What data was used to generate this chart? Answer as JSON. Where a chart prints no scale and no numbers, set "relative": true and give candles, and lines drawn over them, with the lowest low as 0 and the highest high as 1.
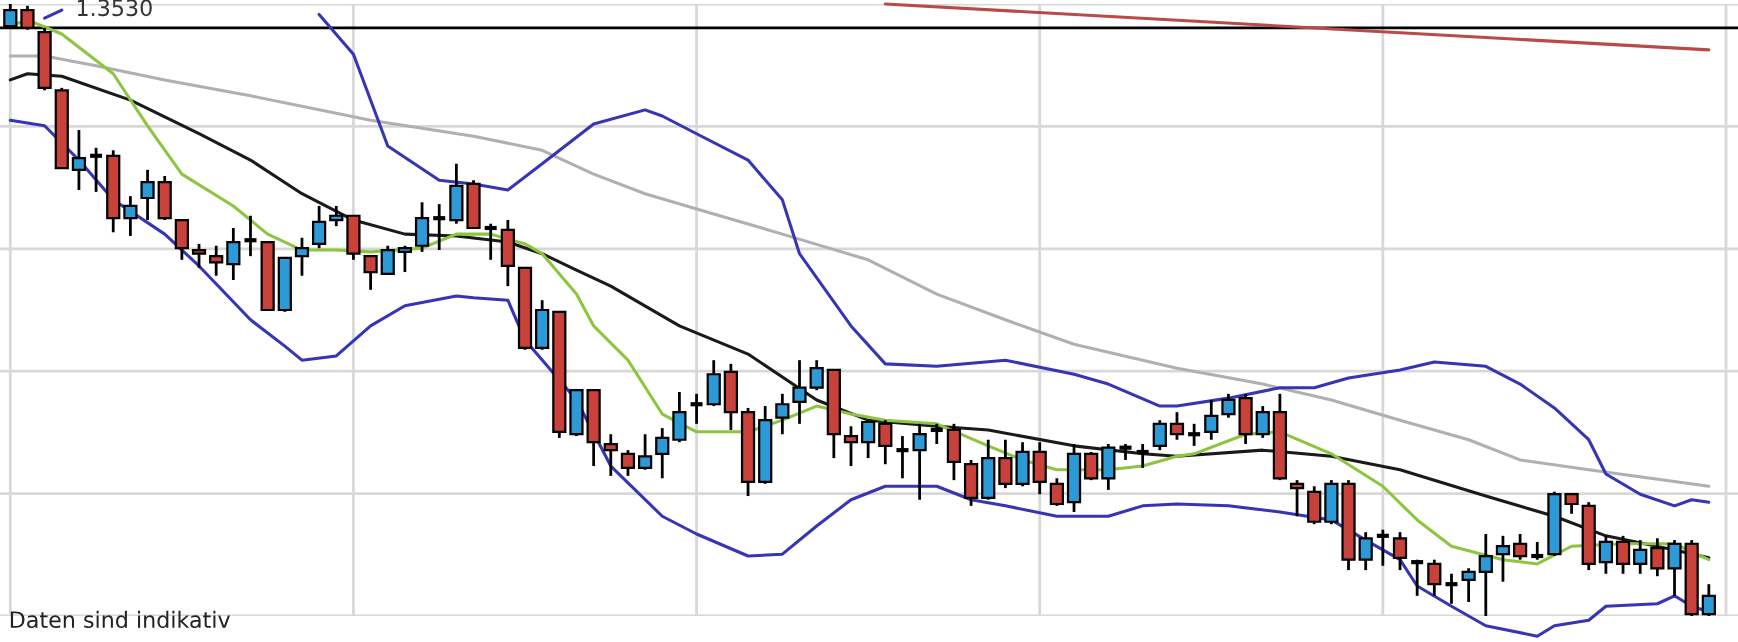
{
  "chart_data": {
    "type": "candlestick",
    "relative": true,
    "grid": true,
    "categories": [
      null,
      null,
      null,
      null,
      null,
      null,
      null,
      null,
      null,
      null,
      null,
      null,
      null,
      null,
      null,
      null,
      null,
      null,
      null,
      null,
      null,
      null,
      null,
      null,
      null,
      null,
      null,
      null,
      null,
      null,
      null,
      null,
      null,
      null,
      null,
      null,
      null,
      null,
      null,
      null,
      null,
      null,
      null,
      null,
      null,
      null,
      null,
      null,
      null,
      null,
      null,
      null,
      null,
      null,
      null,
      null,
      null,
      null,
      null,
      null,
      null,
      null,
      null,
      null,
      null,
      null,
      null,
      null,
      null,
      null,
      null,
      null,
      null,
      null,
      null,
      null,
      null,
      null,
      null,
      null,
      null,
      null,
      null,
      null,
      null,
      null,
      null,
      null,
      null,
      null,
      null,
      null,
      null,
      null,
      null,
      null,
      null,
      null,
      null,
      null
    ],
    "ohlc": [
      [
        0.964,
        1.0,
        0.961,
        0.99
      ],
      [
        0.99,
        0.997,
        0.958,
        0.961
      ],
      [
        0.954,
        0.961,
        0.859,
        0.863
      ],
      [
        0.859,
        0.863,
        0.732,
        0.732
      ],
      [
        0.729,
        0.794,
        0.696,
        0.748
      ],
      [
        0.752,
        0.765,
        0.693,
        0.752
      ],
      [
        0.752,
        0.761,
        0.627,
        0.65
      ],
      [
        0.65,
        0.686,
        0.621,
        0.67
      ],
      [
        0.683,
        0.729,
        0.647,
        0.709
      ],
      [
        0.709,
        0.719,
        0.647,
        0.65
      ],
      [
        0.647,
        0.647,
        0.582,
        0.601
      ],
      [
        0.598,
        0.608,
        0.569,
        0.592
      ],
      [
        0.588,
        0.605,
        0.556,
        0.578
      ],
      [
        0.575,
        0.634,
        0.549,
        0.611
      ],
      [
        0.614,
        0.654,
        0.588,
        0.614
      ],
      [
        0.611,
        0.611,
        0.5,
        0.5
      ],
      [
        0.5,
        0.585,
        0.497,
        0.585
      ],
      [
        0.588,
        0.618,
        0.556,
        0.601
      ],
      [
        0.608,
        0.67,
        0.601,
        0.644
      ],
      [
        0.647,
        0.67,
        0.637,
        0.654
      ],
      [
        0.654,
        0.654,
        0.582,
        0.592
      ],
      [
        0.588,
        0.588,
        0.533,
        0.562
      ],
      [
        0.559,
        0.605,
        0.559,
        0.598
      ],
      [
        0.595,
        0.605,
        0.562,
        0.601
      ],
      [
        0.605,
        0.676,
        0.595,
        0.65
      ],
      [
        0.65,
        0.673,
        0.598,
        0.65
      ],
      [
        0.647,
        0.739,
        0.641,
        0.703
      ],
      [
        0.706,
        0.712,
        0.634,
        0.634
      ],
      [
        0.634,
        0.641,
        0.582,
        0.634
      ],
      [
        0.631,
        0.647,
        0.539,
        0.572
      ],
      [
        0.569,
        0.569,
        0.435,
        0.438
      ],
      [
        0.438,
        0.516,
        0.435,
        0.5
      ],
      [
        0.497,
        0.497,
        0.291,
        0.301
      ],
      [
        0.297,
        0.369,
        0.294,
        0.369
      ],
      [
        0.369,
        0.369,
        0.245,
        0.284
      ],
      [
        0.281,
        0.297,
        0.229,
        0.271
      ],
      [
        0.265,
        0.271,
        0.229,
        0.242
      ],
      [
        0.242,
        0.297,
        0.239,
        0.261
      ],
      [
        0.265,
        0.307,
        0.225,
        0.291
      ],
      [
        0.288,
        0.366,
        0.284,
        0.333
      ],
      [
        0.346,
        0.363,
        0.314,
        0.346
      ],
      [
        0.346,
        0.418,
        0.343,
        0.395
      ],
      [
        0.399,
        0.412,
        0.304,
        0.333
      ],
      [
        0.333,
        0.34,
        0.196,
        0.219
      ],
      [
        0.219,
        0.343,
        0.216,
        0.32
      ],
      [
        0.324,
        0.363,
        0.297,
        0.346
      ],
      [
        0.35,
        0.418,
        0.314,
        0.373
      ],
      [
        0.373,
        0.418,
        0.369,
        0.405
      ],
      [
        0.402,
        0.402,
        0.258,
        0.297
      ],
      [
        0.294,
        0.31,
        0.245,
        0.284
      ],
      [
        0.284,
        0.32,
        0.258,
        0.317
      ],
      [
        0.314,
        0.32,
        0.248,
        0.278
      ],
      [
        0.271,
        0.294,
        0.225,
        0.271
      ],
      [
        0.271,
        0.314,
        0.19,
        0.297
      ],
      [
        0.304,
        0.314,
        0.281,
        0.304
      ],
      [
        0.304,
        0.314,
        0.222,
        0.252
      ],
      [
        0.248,
        0.255,
        0.18,
        0.193
      ],
      [
        0.193,
        0.288,
        0.19,
        0.258
      ],
      [
        0.258,
        0.288,
        0.209,
        0.216
      ],
      [
        0.216,
        0.284,
        0.212,
        0.268
      ],
      [
        0.268,
        0.284,
        0.199,
        0.219
      ],
      [
        0.216,
        0.225,
        0.18,
        0.183
      ],
      [
        0.186,
        0.281,
        0.17,
        0.265
      ],
      [
        0.265,
        0.268,
        0.222,
        0.225
      ],
      [
        0.225,
        0.281,
        0.206,
        0.275
      ],
      [
        0.275,
        0.281,
        0.255,
        0.275
      ],
      [
        0.268,
        0.281,
        0.242,
        0.268
      ],
      [
        0.278,
        0.32,
        0.271,
        0.314
      ],
      [
        0.314,
        0.333,
        0.288,
        0.297
      ],
      [
        0.297,
        0.314,
        0.278,
        0.297
      ],
      [
        0.301,
        0.353,
        0.288,
        0.327
      ],
      [
        0.33,
        0.363,
        0.324,
        0.353
      ],
      [
        0.356,
        0.363,
        0.281,
        0.297
      ],
      [
        0.297,
        0.343,
        0.291,
        0.333
      ],
      [
        0.333,
        0.363,
        0.222,
        0.225
      ],
      [
        0.216,
        0.222,
        0.163,
        0.209
      ],
      [
        0.203,
        0.212,
        0.15,
        0.154
      ],
      [
        0.154,
        0.222,
        0.15,
        0.216
      ],
      [
        0.216,
        0.222,
        0.075,
        0.092
      ],
      [
        0.092,
        0.137,
        0.075,
        0.127
      ],
      [
        0.131,
        0.141,
        0.082,
        0.131
      ],
      [
        0.127,
        0.137,
        0.075,
        0.095
      ],
      [
        0.088,
        0.092,
        0.033,
        0.088
      ],
      [
        0.085,
        0.092,
        0.033,
        0.052
      ],
      [
        0.052,
        0.069,
        0.02,
        0.052
      ],
      [
        0.059,
        0.078,
        0.023,
        0.072
      ],
      [
        0.072,
        0.134,
        0.0,
        0.098
      ],
      [
        0.101,
        0.131,
        0.056,
        0.114
      ],
      [
        0.118,
        0.134,
        0.092,
        0.098
      ],
      [
        0.098,
        0.121,
        0.092,
        0.098
      ],
      [
        0.101,
        0.203,
        0.098,
        0.199
      ],
      [
        0.199,
        0.199,
        0.167,
        0.183
      ],
      [
        0.18,
        0.186,
        0.075,
        0.085
      ],
      [
        0.088,
        0.131,
        0.069,
        0.121
      ],
      [
        0.121,
        0.131,
        0.069,
        0.085
      ],
      [
        0.085,
        0.124,
        0.069,
        0.108
      ],
      [
        0.111,
        0.127,
        0.065,
        0.078
      ],
      [
        0.078,
        0.124,
        0.033,
        0.118
      ],
      [
        0.118,
        0.124,
        0.0,
        0.003
      ],
      [
        0.003,
        0.052,
        0.0,
        0.033
      ]
    ],
    "colors": [
      "#2b9ad6",
      "#c9413b",
      "#c9413b",
      "#c9413b",
      "#2b9ad6",
      "#000000",
      "#c9413b",
      "#2b9ad6",
      "#2b9ad6",
      "#c9413b",
      "#c9413b",
      "#c9413b",
      "#c9413b",
      "#2b9ad6",
      "#000000",
      "#c9413b",
      "#2b9ad6",
      "#2b9ad6",
      "#2b9ad6",
      "#2b9ad6",
      "#c9413b",
      "#c9413b",
      "#2b9ad6",
      "#2b9ad6",
      "#2b9ad6",
      "#000000",
      "#2b9ad6",
      "#c9413b",
      "#000000",
      "#c9413b",
      "#c9413b",
      "#2b9ad6",
      "#c9413b",
      "#2b9ad6",
      "#c9413b",
      "#c9413b",
      "#c9413b",
      "#2b9ad6",
      "#2b9ad6",
      "#2b9ad6",
      "#000000",
      "#2b9ad6",
      "#c9413b",
      "#c9413b",
      "#2b9ad6",
      "#2b9ad6",
      "#2b9ad6",
      "#2b9ad6",
      "#c9413b",
      "#c9413b",
      "#2b9ad6",
      "#c9413b",
      "#000000",
      "#2b9ad6",
      "#000000",
      "#c9413b",
      "#c9413b",
      "#2b9ad6",
      "#c9413b",
      "#2b9ad6",
      "#c9413b",
      "#c9413b",
      "#2b9ad6",
      "#c9413b",
      "#2b9ad6",
      "#000000",
      "#000000",
      "#2b9ad6",
      "#c9413b",
      "#000000",
      "#2b9ad6",
      "#2b9ad6",
      "#c9413b",
      "#2b9ad6",
      "#c9413b",
      "#c9413b",
      "#c9413b",
      "#2b9ad6",
      "#c9413b",
      "#2b9ad6",
      "#000000",
      "#c9413b",
      "#000000",
      "#c9413b",
      "#000000",
      "#2b9ad6",
      "#2b9ad6",
      "#2b9ad6",
      "#c9413b",
      "#000000",
      "#2b9ad6",
      "#c9413b",
      "#c9413b",
      "#2b9ad6",
      "#c9413b",
      "#2b9ad6",
      "#c9413b",
      "#2b9ad6",
      "#c9413b",
      "#2b9ad6"
    ],
    "series": [
      {
        "type": "line",
        "color": "#b0b0b0",
        "values": [
          0.915,
          null,
          0.915,
          null,
          null,
          0.899,
          null,
          null,
          null,
          0.876,
          null,
          null,
          null,
          null,
          0.85,
          null,
          null,
          null,
          null,
          null,
          null,
          0.81,
          null,
          null,
          null,
          null,
          null,
          0.784,
          null,
          null,
          null,
          0.761,
          null,
          null,
          0.722,
          null,
          null,
          0.69,
          null,
          null,
          null,
          0.657,
          null,
          null,
          null,
          0.624,
          null,
          null,
          null,
          null,
          0.582,
          null,
          null,
          null,
          0.526,
          null,
          null,
          null,
          0.484,
          null,
          null,
          null,
          0.444,
          null,
          null,
          null,
          null,
          null,
          0.405,
          null,
          null,
          null,
          null,
          0.379,
          null,
          null,
          null,
          0.353,
          null,
          null,
          null,
          0.32,
          null,
          null,
          null,
          0.288,
          null,
          null,
          0.255,
          null,
          null,
          null,
          0.239,
          null,
          null,
          null,
          null,
          null,
          null,
          0.212
        ]
      },
      {
        "type": "line",
        "color": "#3535b5",
        "values": [
          null,
          null,
          0.977,
          0.99,
          null,
          null,
          null,
          null,
          null,
          null,
          null,
          null,
          null,
          null,
          null,
          null,
          null,
          null,
          null,
          null,
          null,
          null,
          null,
          null,
          null,
          null,
          null,
          null,
          null,
          null,
          null,
          null,
          null,
          null,
          null,
          null,
          null,
          null,
          null,
          null,
          null,
          null,
          null,
          null,
          null,
          null,
          null,
          null,
          null,
          null,
          null,
          null,
          null,
          null,
          null,
          null,
          null,
          null,
          null,
          null,
          null,
          null,
          null,
          null,
          null,
          null,
          null,
          null,
          null,
          null,
          null,
          null,
          null,
          null,
          null,
          null,
          null,
          null,
          null,
          null,
          null,
          null,
          null,
          null,
          null,
          null,
          null,
          null,
          null,
          null,
          null,
          null,
          null,
          null,
          null,
          null,
          null,
          null,
          null,
          null
        ]
      },
      {
        "type": "line",
        "color": "#3535b5",
        "values": [
          null,
          null,
          null,
          null,
          null,
          null,
          null,
          null,
          null,
          null,
          null,
          null,
          null,
          null,
          null,
          null,
          null,
          null,
          0.983,
          null,
          0.918,
          null,
          0.768,
          null,
          null,
          0.712,
          null,
          0.706,
          null,
          0.696,
          null,
          0.739,
          null,
          null,
          0.804,
          null,
          null,
          0.827,
          0.817,
          null,
          0.788,
          null,
          null,
          0.745,
          null,
          0.68,
          0.592,
          null,
          null,
          0.474,
          null,
          0.412,
          null,
          null,
          0.408,
          null,
          null,
          null,
          0.418,
          null,
          null,
          null,
          0.395,
          null,
          0.379,
          null,
          null,
          0.343,
          0.343,
          null,
          null,
          0.356,
          null,
          null,
          0.373,
          null,
          0.373,
          null,
          0.389,
          null,
          null,
          0.402,
          null,
          0.415,
          null,
          null,
          0.408,
          null,
          0.379,
          null,
          0.34,
          null,
          0.288,
          0.232,
          null,
          0.199,
          null,
          0.18,
          0.19,
          0.186
        ]
      },
      {
        "type": "line",
        "color": "#3535b5",
        "values": [
          0.81,
          null,
          0.801,
          null,
          0.745,
          null,
          0.68,
          null,
          null,
          0.624,
          null,
          0.572,
          null,
          null,
          0.484,
          null,
          0.441,
          0.418,
          null,
          0.425,
          null,
          0.474,
          null,
          0.507,
          null,
          null,
          0.523,
          0.52,
          null,
          0.516,
          0.451,
          null,
          null,
          0.353,
          null,
          0.245,
          null,
          null,
          0.163,
          null,
          0.134,
          null,
          null,
          0.098,
          null,
          0.101,
          null,
          0.147,
          null,
          0.19,
          null,
          0.212,
          null,
          null,
          0.212,
          null,
          0.19,
          null,
          0.18,
          null,
          null,
          0.163,
          null,
          null,
          0.163,
          null,
          0.18,
          null,
          0.183,
          null,
          null,
          0.18,
          null,
          null,
          0.17,
          null,
          null,
          0.157,
          null,
          0.124,
          null,
          0.092,
          0.049,
          null,
          0.016,
          null,
          -0.016,
          null,
          null,
          -0.033,
          -0.016,
          null,
          -0.007,
          0.016,
          null,
          null,
          0.02,
          0.033,
          0.016,
          0.007
        ]
      },
      {
        "type": "line",
        "color": "#1a1a1a",
        "values": [
          0.876,
          0.886,
          null,
          0.882,
          null,
          null,
          null,
          0.843,
          null,
          null,
          null,
          0.788,
          null,
          null,
          0.745,
          null,
          null,
          0.69,
          null,
          null,
          0.647,
          null,
          null,
          0.624,
          null,
          null,
          0.621,
          null,
          null,
          0.611,
          null,
          0.592,
          null,
          0.565,
          null,
          0.539,
          null,
          null,
          null,
          0.474,
          null,
          null,
          null,
          0.428,
          null,
          null,
          null,
          0.353,
          null,
          null,
          0.32,
          null,
          null,
          null,
          0.31,
          null,
          null,
          0.304,
          null,
          null,
          null,
          null,
          0.278,
          null,
          null,
          null,
          0.265,
          null,
          0.261,
          null,
          null,
          null,
          null,
          0.271,
          null,
          null,
          null,
          0.261,
          null,
          null,
          null,
          0.239,
          null,
          null,
          null,
          null,
          0.196,
          null,
          null,
          null,
          0.163,
          null,
          null,
          0.131,
          null,
          null,
          null,
          0.108,
          null,
          0.095
        ]
      },
      {
        "type": "line",
        "color": "#8cc63f",
        "values": [
          0.964,
          0.974,
          null,
          0.951,
          null,
          null,
          0.886,
          null,
          0.801,
          null,
          0.722,
          null,
          null,
          0.67,
          null,
          0.624,
          null,
          0.598,
          null,
          0.598,
          null,
          0.595,
          null,
          null,
          0.601,
          null,
          0.624,
          null,
          0.624,
          null,
          0.608,
          0.592,
          null,
          0.526,
          0.474,
          null,
          0.418,
          null,
          0.33,
          null,
          0.301,
          null,
          null,
          0.301,
          null,
          0.32,
          null,
          0.343,
          null,
          0.33,
          null,
          0.32,
          null,
          null,
          0.314,
          null,
          null,
          0.278,
          null,
          0.255,
          null,
          0.239,
          null,
          null,
          0.239,
          null,
          0.245,
          null,
          0.261,
          0.265,
          null,
          null,
          0.297,
          null,
          0.301,
          null,
          null,
          0.265,
          null,
          null,
          0.212,
          null,
          0.157,
          null,
          0.114,
          null,
          null,
          0.092,
          null,
          0.085,
          null,
          0.114,
          null,
          null,
          0.118,
          null,
          null,
          0.118,
          null,
          0.092
        ]
      },
      {
        "type": "line",
        "color": "#b94a48",
        "values": [
          null,
          null,
          null,
          null,
          null,
          null,
          null,
          null,
          null,
          null,
          null,
          null,
          null,
          null,
          null,
          null,
          null,
          null,
          null,
          null,
          null,
          null,
          null,
          null,
          null,
          null,
          null,
          null,
          null,
          null,
          null,
          null,
          null,
          null,
          null,
          null,
          null,
          null,
          null,
          null,
          null,
          null,
          null,
          null,
          null,
          null,
          null,
          null,
          null,
          null,
          null,
          1.0,
          null,
          null,
          null,
          null,
          null,
          null,
          null,
          null,
          null,
          null,
          null,
          null,
          null,
          null,
          null,
          null,
          null,
          null,
          null,
          null,
          null,
          null,
          null,
          null,
          null,
          null,
          null,
          null,
          null,
          null,
          null,
          null,
          null,
          null,
          null,
          null,
          null,
          null,
          null,
          null,
          null,
          null,
          null,
          null,
          null,
          null,
          null,
          0.925
        ]
      }
    ],
    "ref_lines": [
      {
        "axis": "y",
        "value": 0.961,
        "color": "#000000"
      }
    ],
    "annotations": [
      {
        "text": "1.3530",
        "y": 0.961
      },
      "Daten sind indikativ"
    ]
  }
}
